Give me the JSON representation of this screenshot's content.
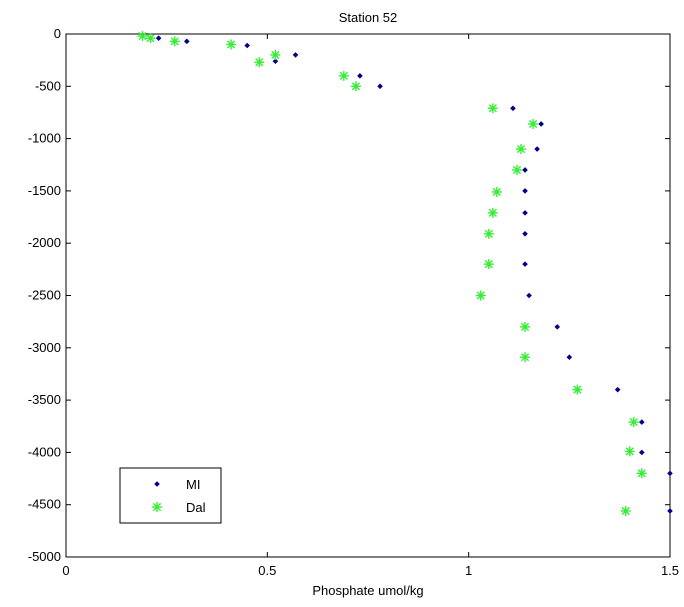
{
  "chart_data": {
    "type": "scatter",
    "title": "Station 52",
    "xlabel": "Phosphate umol/kg",
    "ylabel": "",
    "xlim": [
      0,
      1.5
    ],
    "ylim": [
      -5000,
      0
    ],
    "x_ticks": [
      0,
      0.5,
      1,
      1.5
    ],
    "x_tick_labels": [
      "0",
      "0.5",
      "1",
      "1.5"
    ],
    "y_ticks": [
      0,
      -500,
      -1000,
      -1500,
      -2000,
      -2500,
      -3000,
      -3500,
      -4000,
      -4500,
      -5000
    ],
    "y_tick_labels": [
      "0",
      "-500",
      "-1000",
      "-1500",
      "-2000",
      "-2500",
      "-3000",
      "-3500",
      "-4000",
      "-4500",
      "-5000"
    ],
    "grid": false,
    "legend_position": "bottom-left",
    "series": [
      {
        "name": "MI",
        "marker": "dot",
        "color": "#00008b",
        "points": [
          [
            0.23,
            -40
          ],
          [
            0.3,
            -70
          ],
          [
            0.45,
            -110
          ],
          [
            0.57,
            -200
          ],
          [
            0.52,
            -260
          ],
          [
            0.73,
            -400
          ],
          [
            0.78,
            -500
          ],
          [
            1.11,
            -710
          ],
          [
            1.18,
            -860
          ],
          [
            1.17,
            -1100
          ],
          [
            1.14,
            -1300
          ],
          [
            1.14,
            -1500
          ],
          [
            1.14,
            -1710
          ],
          [
            1.14,
            -1910
          ],
          [
            1.14,
            -2200
          ],
          [
            1.15,
            -2500
          ],
          [
            1.22,
            -2800
          ],
          [
            1.25,
            -3090
          ],
          [
            1.37,
            -3400
          ],
          [
            1.43,
            -3710
          ],
          [
            1.43,
            -4000
          ],
          [
            1.5,
            -4200
          ],
          [
            1.5,
            -4560
          ]
        ]
      },
      {
        "name": "Dal",
        "marker": "star",
        "color": "#33ee33",
        "points": [
          [
            0.19,
            -20
          ],
          [
            0.21,
            -40
          ],
          [
            0.27,
            -70
          ],
          [
            0.41,
            -100
          ],
          [
            0.52,
            -200
          ],
          [
            0.48,
            -270
          ],
          [
            0.69,
            -400
          ],
          [
            0.72,
            -500
          ],
          [
            1.06,
            -710
          ],
          [
            1.16,
            -860
          ],
          [
            1.13,
            -1100
          ],
          [
            1.12,
            -1300
          ],
          [
            1.07,
            -1510
          ],
          [
            1.06,
            -1710
          ],
          [
            1.05,
            -1910
          ],
          [
            1.05,
            -2200
          ],
          [
            1.03,
            -2500
          ],
          [
            1.14,
            -2800
          ],
          [
            1.14,
            -3090
          ],
          [
            1.27,
            -3400
          ],
          [
            1.41,
            -3710
          ],
          [
            1.4,
            -3990
          ],
          [
            1.43,
            -4200
          ],
          [
            1.39,
            -4560
          ]
        ]
      }
    ]
  }
}
